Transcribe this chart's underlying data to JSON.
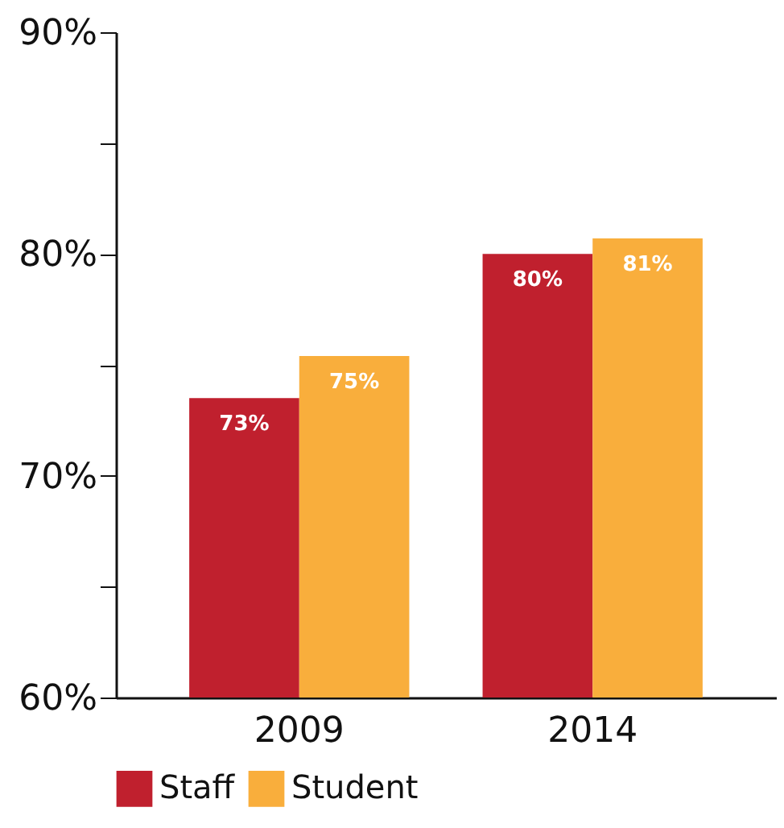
{
  "chart_data": {
    "type": "bar",
    "categories": [
      "2009",
      "2014"
    ],
    "series": [
      {
        "name": "Staff",
        "color": "#c0202e",
        "values": [
          73.5,
          80.0
        ],
        "value_labels": [
          "73%",
          "80%"
        ]
      },
      {
        "name": "Student",
        "color": "#f9ae3c",
        "values": [
          75.4,
          80.7
        ],
        "value_labels": [
          "75%",
          "81%"
        ]
      }
    ],
    "ylim": [
      60,
      90
    ],
    "yticks": [
      {
        "value": 60,
        "label": "60%"
      },
      {
        "value": 65,
        "label": null
      },
      {
        "value": 70,
        "label": "70%"
      },
      {
        "value": 75,
        "label": null
      },
      {
        "value": 80,
        "label": "80%"
      },
      {
        "value": 85,
        "label": null
      },
      {
        "value": 90,
        "label": "90%"
      }
    ],
    "grid": false,
    "legend": "bottom"
  }
}
